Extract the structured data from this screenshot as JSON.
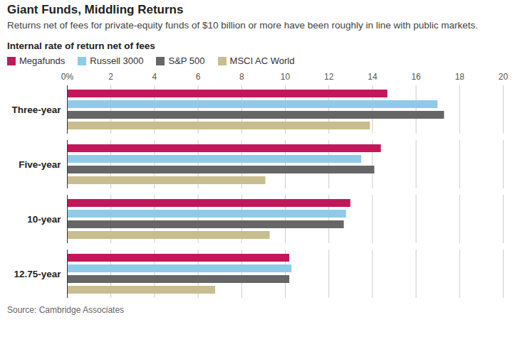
{
  "chart_data": {
    "type": "bar",
    "orientation": "horizontal",
    "title": "Giant Funds, Middling Returns",
    "subtitle": "Returns net of fees for private-equity funds of $10 billion or more have been roughly in line with public markets.",
    "xlabel": "Internal rate of return net of fees",
    "source": "Source: Cambridge Associates",
    "categories": [
      "Three-year",
      "Five-year",
      "10-year",
      "12.75-year"
    ],
    "series": [
      {
        "name": "Megafunds",
        "color": "#c2185b",
        "values": [
          14.7,
          14.4,
          13.0,
          10.2
        ]
      },
      {
        "name": "Russell 3000",
        "color": "#8fcbe8",
        "values": [
          17.0,
          13.5,
          12.8,
          10.3
        ]
      },
      {
        "name": "S&P 500",
        "color": "#666666",
        "values": [
          17.3,
          14.1,
          12.7,
          10.2
        ]
      },
      {
        "name": "MSCI AC World",
        "color": "#c8bd8e",
        "values": [
          13.9,
          9.1,
          9.3,
          6.8
        ]
      }
    ],
    "xlim": [
      0,
      20
    ],
    "xticks": [
      {
        "value": 0,
        "label": "0%"
      },
      2,
      4,
      6,
      8,
      10,
      12,
      14,
      16,
      18,
      20
    ],
    "grid": true,
    "legend": "top",
    "data_labels": false
  }
}
